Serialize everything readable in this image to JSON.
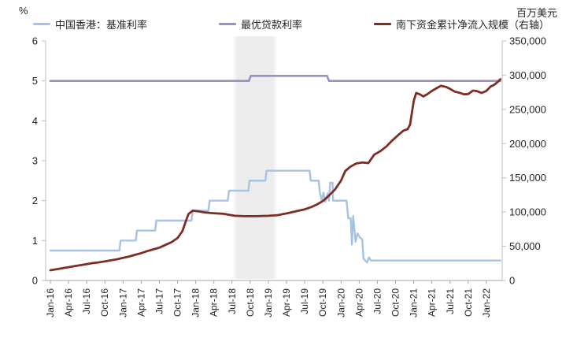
{
  "axes": {
    "left_title": "%",
    "right_title": "百万美元",
    "left_ticks": [
      "0",
      "1",
      "2",
      "3",
      "4",
      "5",
      "6"
    ],
    "right_ticks": [
      "0",
      "50,000",
      "100,000",
      "150,000",
      "200,000",
      "250,000",
      "300,000",
      "350,000"
    ],
    "x_ticks": [
      "Jan-16",
      "Apr-16",
      "Jul-16",
      "Oct-16",
      "Jan-17",
      "Apr-17",
      "Jul-17",
      "Oct-17",
      "Jan-18",
      "Apr-18",
      "Jul-18",
      "Oct-18",
      "Jan-19",
      "Apr-19",
      "Jul-19",
      "Oct-19",
      "Jan-20",
      "Apr-20",
      "Jul-20",
      "Oct-20",
      "Jan-21",
      "Apr-21",
      "Jul-21",
      "Oct-21",
      "Jan-22"
    ]
  },
  "legend": {
    "items": [
      {
        "label": "中国香港：基准利率",
        "color": "#A6C3E3"
      },
      {
        "label": "最优贷款利率",
        "color": "#9D8DC2"
      },
      {
        "label": "南下资金累计净流入规模（右轴）",
        "color": "#7E2D25"
      }
    ]
  },
  "chart_data": {
    "type": "line",
    "title": "",
    "x_unit": "months since Jan-2016",
    "x_labels": [
      "Jan-16",
      "Apr-16",
      "Jul-16",
      "Oct-16",
      "Jan-17",
      "Apr-17",
      "Jul-17",
      "Oct-17",
      "Jan-18",
      "Apr-18",
      "Jul-18",
      "Oct-18",
      "Jan-19",
      "Apr-19",
      "Jul-19",
      "Oct-19",
      "Jan-20",
      "Apr-20",
      "Jul-20",
      "Oct-20",
      "Jan-21",
      "Apr-21",
      "Jul-21",
      "Oct-21",
      "Jan-22"
    ],
    "left_axis": {
      "label": "%",
      "range": [
        0,
        6
      ],
      "tick_step": 1
    },
    "right_axis": {
      "label": "百万美元",
      "range": [
        0,
        350000
      ],
      "tick_step": 50000
    },
    "shaded_band": {
      "from_month": 30.0,
      "to_month": 37.6,
      "color": "#ECECEC"
    },
    "series": [
      {
        "name": "中国香港：基准利率",
        "axis": "left",
        "color": "#A6C3E3",
        "width": 2.4,
        "points": [
          [
            0,
            0.75
          ],
          [
            11.4,
            0.75
          ],
          [
            11.6,
            1.0
          ],
          [
            14.1,
            1.0
          ],
          [
            14.3,
            1.25
          ],
          [
            17.3,
            1.25
          ],
          [
            17.5,
            1.5
          ],
          [
            23.3,
            1.5
          ],
          [
            23.5,
            1.75
          ],
          [
            26.1,
            1.75
          ],
          [
            26.3,
            2.0
          ],
          [
            29.3,
            2.0
          ],
          [
            29.5,
            2.25
          ],
          [
            32.7,
            2.25
          ],
          [
            32.9,
            2.5
          ],
          [
            35.5,
            2.5
          ],
          [
            35.7,
            2.75
          ],
          [
            42.8,
            2.75
          ],
          [
            43.0,
            2.5
          ],
          [
            44.3,
            2.5
          ],
          [
            44.5,
            2.2
          ],
          [
            44.8,
            2.0
          ],
          [
            45.1,
            2.2
          ],
          [
            45.4,
            1.97
          ],
          [
            45.8,
            2.18
          ],
          [
            46.0,
            2.0
          ],
          [
            46.2,
            2.45
          ],
          [
            46.6,
            2.45
          ],
          [
            46.7,
            2.0
          ],
          [
            48.9,
            2.0
          ],
          [
            49.2,
            1.56
          ],
          [
            49.6,
            1.56
          ],
          [
            49.8,
            0.9
          ],
          [
            50.0,
            1.62
          ],
          [
            50.2,
            1.3
          ],
          [
            50.4,
            0.97
          ],
          [
            50.7,
            1.18
          ],
          [
            51.1,
            1.08
          ],
          [
            51.5,
            1.03
          ],
          [
            51.7,
            0.55
          ],
          [
            52.3,
            0.45
          ],
          [
            52.6,
            0.58
          ],
          [
            52.9,
            0.5
          ],
          [
            74.3,
            0.5
          ]
        ]
      },
      {
        "name": "最优贷款利率",
        "axis": "left",
        "color": "#9D8DC2",
        "width": 2.6,
        "points": [
          [
            0,
            5.0
          ],
          [
            32.8,
            5.0
          ],
          [
            33.1,
            5.125
          ],
          [
            45.7,
            5.125
          ],
          [
            46.0,
            5.0
          ],
          [
            74.3,
            5.0
          ]
        ]
      },
      {
        "name": "南下资金累计净流入规模（右轴）",
        "axis": "right",
        "color": "#7E2D25",
        "width": 2.8,
        "points": [
          [
            0,
            15000
          ],
          [
            1,
            16500
          ],
          [
            2,
            18000
          ],
          [
            3,
            19500
          ],
          [
            4,
            21000
          ],
          [
            5,
            22500
          ],
          [
            6,
            24000
          ],
          [
            7,
            25500
          ],
          [
            8,
            26500
          ],
          [
            9,
            28000
          ],
          [
            10,
            29500
          ],
          [
            11,
            31000
          ],
          [
            12,
            33000
          ],
          [
            13,
            35000
          ],
          [
            14,
            37500
          ],
          [
            15,
            40000
          ],
          [
            16,
            43000
          ],
          [
            17,
            45500
          ],
          [
            18,
            48000
          ],
          [
            19,
            52000
          ],
          [
            20,
            56000
          ],
          [
            21,
            62000
          ],
          [
            21.8,
            72000
          ],
          [
            22.3,
            85000
          ],
          [
            22.8,
            97000
          ],
          [
            23.5,
            102000
          ],
          [
            24.5,
            101000
          ],
          [
            25.5,
            99500
          ],
          [
            26.5,
            98500
          ],
          [
            27.5,
            98000
          ],
          [
            28.5,
            97500
          ],
          [
            29.5,
            96000
          ],
          [
            30.5,
            94500
          ],
          [
            32,
            94000
          ],
          [
            34,
            94000
          ],
          [
            36,
            94500
          ],
          [
            37.5,
            95500
          ],
          [
            39,
            98000
          ],
          [
            40.5,
            101000
          ],
          [
            42,
            104000
          ],
          [
            43,
            107000
          ],
          [
            44,
            111000
          ],
          [
            45,
            116000
          ],
          [
            46,
            124000
          ],
          [
            47,
            133000
          ],
          [
            48,
            146000
          ],
          [
            48.7,
            160000
          ],
          [
            49.5,
            166000
          ],
          [
            50.5,
            171000
          ],
          [
            51.5,
            172500
          ],
          [
            52.5,
            171500
          ],
          [
            53.5,
            184000
          ],
          [
            54.5,
            189000
          ],
          [
            55.5,
            196000
          ],
          [
            56.5,
            205000
          ],
          [
            57.5,
            213000
          ],
          [
            58.3,
            219000
          ],
          [
            59,
            221000
          ],
          [
            59.4,
            228000
          ],
          [
            60,
            262000
          ],
          [
            60.4,
            274000
          ],
          [
            61,
            272000
          ],
          [
            61.6,
            269000
          ],
          [
            62.3,
            272500
          ],
          [
            63,
            277000
          ],
          [
            63.8,
            281000
          ],
          [
            64.5,
            284500
          ],
          [
            65.3,
            283000
          ],
          [
            66,
            280000
          ],
          [
            66.8,
            276000
          ],
          [
            67.5,
            274500
          ],
          [
            68.3,
            272000
          ],
          [
            69,
            272500
          ],
          [
            69.8,
            277500
          ],
          [
            70.5,
            276500
          ],
          [
            71.2,
            274000
          ],
          [
            72,
            277000
          ],
          [
            72.7,
            283500
          ],
          [
            73.3,
            286000
          ],
          [
            74,
            291000
          ],
          [
            74.3,
            294000
          ]
        ]
      }
    ]
  }
}
